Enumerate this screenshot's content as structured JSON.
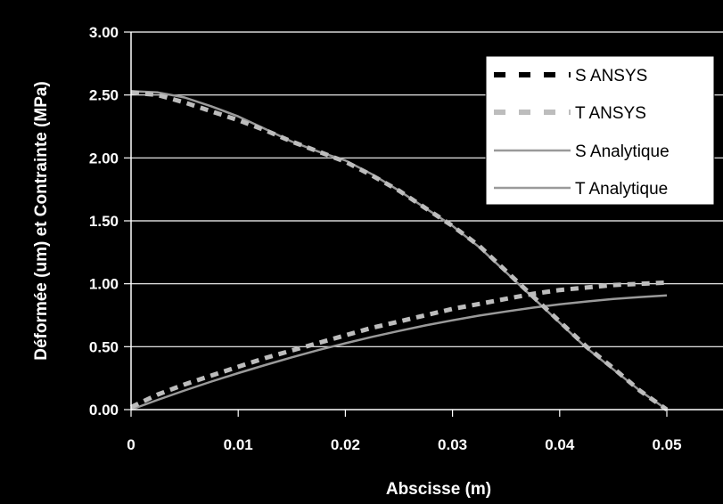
{
  "chart_data": {
    "type": "line",
    "title": "",
    "xlabel": "Abscisse (m)",
    "ylabel": "Déformée (um) et Contrainte (MPa)",
    "xlim": [
      0,
      0.05
    ],
    "ylim": [
      0,
      3
    ],
    "x_ticks": [
      "0",
      "0.01",
      "0.02",
      "0.03",
      "0.04",
      "0.05"
    ],
    "y_ticks": [
      "0.00",
      "0.50",
      "1.00",
      "1.50",
      "2.00",
      "2.50",
      "3.00"
    ],
    "grid": "horizontal",
    "legend_position": "top-right",
    "colors": {
      "background": "#000000",
      "plot_area": "#000000",
      "grid": "#ffffff",
      "ansys": "#bdbdbd",
      "analytique": "#9a9a9a",
      "legend_bg": "#ffffff"
    },
    "series": [
      {
        "name": "S ANSYS",
        "style": "dashed",
        "x": [
          0,
          0.0025,
          0.005,
          0.0075,
          0.01,
          0.0125,
          0.015,
          0.0175,
          0.02,
          0.0225,
          0.025,
          0.0275,
          0.03,
          0.0325,
          0.035,
          0.0375,
          0.04,
          0.0425,
          0.045,
          0.0475,
          0.05
        ],
        "values": [
          0.02,
          0.12,
          0.2,
          0.27,
          0.34,
          0.41,
          0.47,
          0.53,
          0.59,
          0.65,
          0.7,
          0.75,
          0.8,
          0.84,
          0.88,
          0.92,
          0.95,
          0.97,
          0.99,
          1.0,
          1.01
        ]
      },
      {
        "name": "T ANSYS",
        "style": "dashed",
        "x": [
          0,
          0.0025,
          0.005,
          0.0075,
          0.01,
          0.0125,
          0.015,
          0.0175,
          0.02,
          0.0225,
          0.025,
          0.0275,
          0.03,
          0.0325,
          0.035,
          0.0375,
          0.04,
          0.0425,
          0.045,
          0.0475,
          0.05
        ],
        "values": [
          2.52,
          2.5,
          2.44,
          2.37,
          2.3,
          2.22,
          2.13,
          2.05,
          1.97,
          1.86,
          1.74,
          1.6,
          1.46,
          1.3,
          1.1,
          0.9,
          0.7,
          0.5,
          0.33,
          0.15,
          0.0
        ]
      },
      {
        "name": "S Analytique",
        "style": "solid",
        "x": [
          0,
          0.0025,
          0.005,
          0.0075,
          0.01,
          0.0125,
          0.015,
          0.0175,
          0.02,
          0.0225,
          0.025,
          0.0275,
          0.03,
          0.0325,
          0.035,
          0.0375,
          0.04,
          0.0425,
          0.045,
          0.0475,
          0.05
        ],
        "values": [
          0.0,
          0.078,
          0.152,
          0.223,
          0.29,
          0.354,
          0.415,
          0.473,
          0.527,
          0.578,
          0.625,
          0.669,
          0.71,
          0.747,
          0.78,
          0.81,
          0.837,
          0.859,
          0.879,
          0.894,
          0.907
        ]
      },
      {
        "name": "T Analytique",
        "style": "solid",
        "x": [
          0,
          0.0025,
          0.005,
          0.0075,
          0.01,
          0.0125,
          0.015,
          0.0175,
          0.02,
          0.0225,
          0.025,
          0.0275,
          0.03,
          0.0325,
          0.035,
          0.0375,
          0.04,
          0.0425,
          0.045,
          0.0475,
          0.05
        ],
        "values": [
          2.53,
          2.52,
          2.48,
          2.41,
          2.33,
          2.23,
          2.13,
          2.05,
          1.98,
          1.87,
          1.74,
          1.6,
          1.46,
          1.29,
          1.09,
          0.89,
          0.69,
          0.49,
          0.32,
          0.15,
          0.0
        ]
      }
    ]
  }
}
